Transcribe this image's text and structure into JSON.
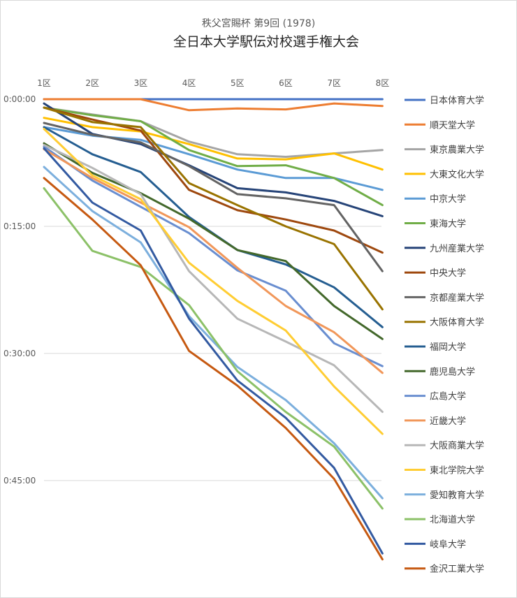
{
  "chart_data": {
    "type": "line",
    "subtitle": "秩父宮賜杯 第9回 (1978)",
    "title": "全日本大学駅伝対校選手権大会",
    "categories": [
      "1区",
      "2区",
      "3区",
      "4区",
      "5区",
      "6区",
      "7区",
      "8区"
    ],
    "y_tick_labels": [
      "0:00:00",
      "0:15:00",
      "0:30:00",
      "0:45:00"
    ],
    "y_ticks_minutes": [
      0,
      15,
      30,
      45
    ],
    "ylim_minutes": [
      0,
      58
    ],
    "y_reversed": true,
    "grid": "horizontal",
    "legend_position": "right",
    "series": [
      {
        "name": "日本体育大学",
        "color": "#4472C4",
        "values": [
          0,
          0,
          0,
          0,
          0,
          0,
          0,
          0
        ]
      },
      {
        "name": "順天堂大学",
        "color": "#ED7D31",
        "values": [
          0,
          0,
          0,
          1.3,
          1.1,
          1.2,
          0.5,
          0.8
        ]
      },
      {
        "name": "東京農業大学",
        "color": "#A5A5A5",
        "values": [
          1.0,
          1.8,
          2.6,
          5.0,
          6.5,
          6.8,
          6.4,
          6.0
        ]
      },
      {
        "name": "大東文化大学",
        "color": "#FFC000",
        "values": [
          2.2,
          3.3,
          3.8,
          5.3,
          7.0,
          7.1,
          6.4,
          8.3
        ]
      },
      {
        "name": "中京大学",
        "color": "#5B9BD5",
        "values": [
          3.3,
          4.3,
          4.8,
          6.5,
          8.3,
          9.3,
          9.3,
          10.7
        ]
      },
      {
        "name": "東海大学",
        "color": "#70AD47",
        "values": [
          1.0,
          1.9,
          2.6,
          6.0,
          7.9,
          7.8,
          9.3,
          12.5
        ]
      },
      {
        "name": "九州産業大学",
        "color": "#264478",
        "values": [
          0.5,
          4.1,
          5.3,
          7.8,
          10.5,
          11.0,
          12.0,
          13.8
        ]
      },
      {
        "name": "中央大学",
        "color": "#9E480E",
        "values": [
          1.0,
          2.4,
          3.7,
          10.7,
          13.1,
          14.2,
          15.5,
          18.1
        ]
      },
      {
        "name": "京都産業大学",
        "color": "#636363",
        "values": [
          2.8,
          4.2,
          5.1,
          7.9,
          11.2,
          11.7,
          12.5,
          20.3
        ]
      },
      {
        "name": "大阪体育大学",
        "color": "#997300",
        "values": [
          1.0,
          2.7,
          3.3,
          9.9,
          12.5,
          15.0,
          17.1,
          24.8
        ]
      },
      {
        "name": "福岡大学",
        "color": "#255E91",
        "values": [
          3.3,
          6.5,
          8.6,
          13.9,
          17.8,
          19.5,
          22.2,
          26.9
        ]
      },
      {
        "name": "鹿児島大学",
        "color": "#43682B",
        "values": [
          5.2,
          8.7,
          11.1,
          14.1,
          17.8,
          19.1,
          24.4,
          28.3
        ]
      },
      {
        "name": "広島大学",
        "color": "#698ED0",
        "values": [
          5.6,
          9.6,
          12.7,
          15.8,
          20.2,
          22.6,
          28.8,
          31.5
        ]
      },
      {
        "name": "近畿大学",
        "color": "#F1975A",
        "values": [
          5.9,
          9.3,
          12.2,
          15.1,
          19.9,
          24.4,
          27.5,
          32.3
        ]
      },
      {
        "name": "大阪商業大学",
        "color": "#B7B7B7",
        "values": [
          5.4,
          8.1,
          11.2,
          20.3,
          25.9,
          28.6,
          31.4,
          36.9
        ]
      },
      {
        "name": "東北学院大学",
        "color": "#FFCD33",
        "values": [
          3.5,
          9.0,
          11.8,
          19.3,
          23.8,
          27.3,
          33.9,
          39.5
        ]
      },
      {
        "name": "愛知教育大学",
        "color": "#7CAFDD",
        "values": [
          8.0,
          13.2,
          16.9,
          25.6,
          31.6,
          35.5,
          40.6,
          47.1
        ]
      },
      {
        "name": "北海道大学",
        "color": "#8CC168",
        "values": [
          10.5,
          17.9,
          19.8,
          24.3,
          32.1,
          36.9,
          41.0,
          48.3
        ]
      },
      {
        "name": "岐阜大学",
        "color": "#335AA1",
        "values": [
          5.8,
          12.2,
          15.5,
          25.9,
          33.2,
          37.6,
          43.5,
          53.6
        ]
      },
      {
        "name": "金沢工業大学",
        "color": "#C65911",
        "values": [
          9.3,
          14.2,
          19.6,
          29.7,
          33.8,
          38.8,
          44.8,
          54.3
        ]
      }
    ]
  }
}
